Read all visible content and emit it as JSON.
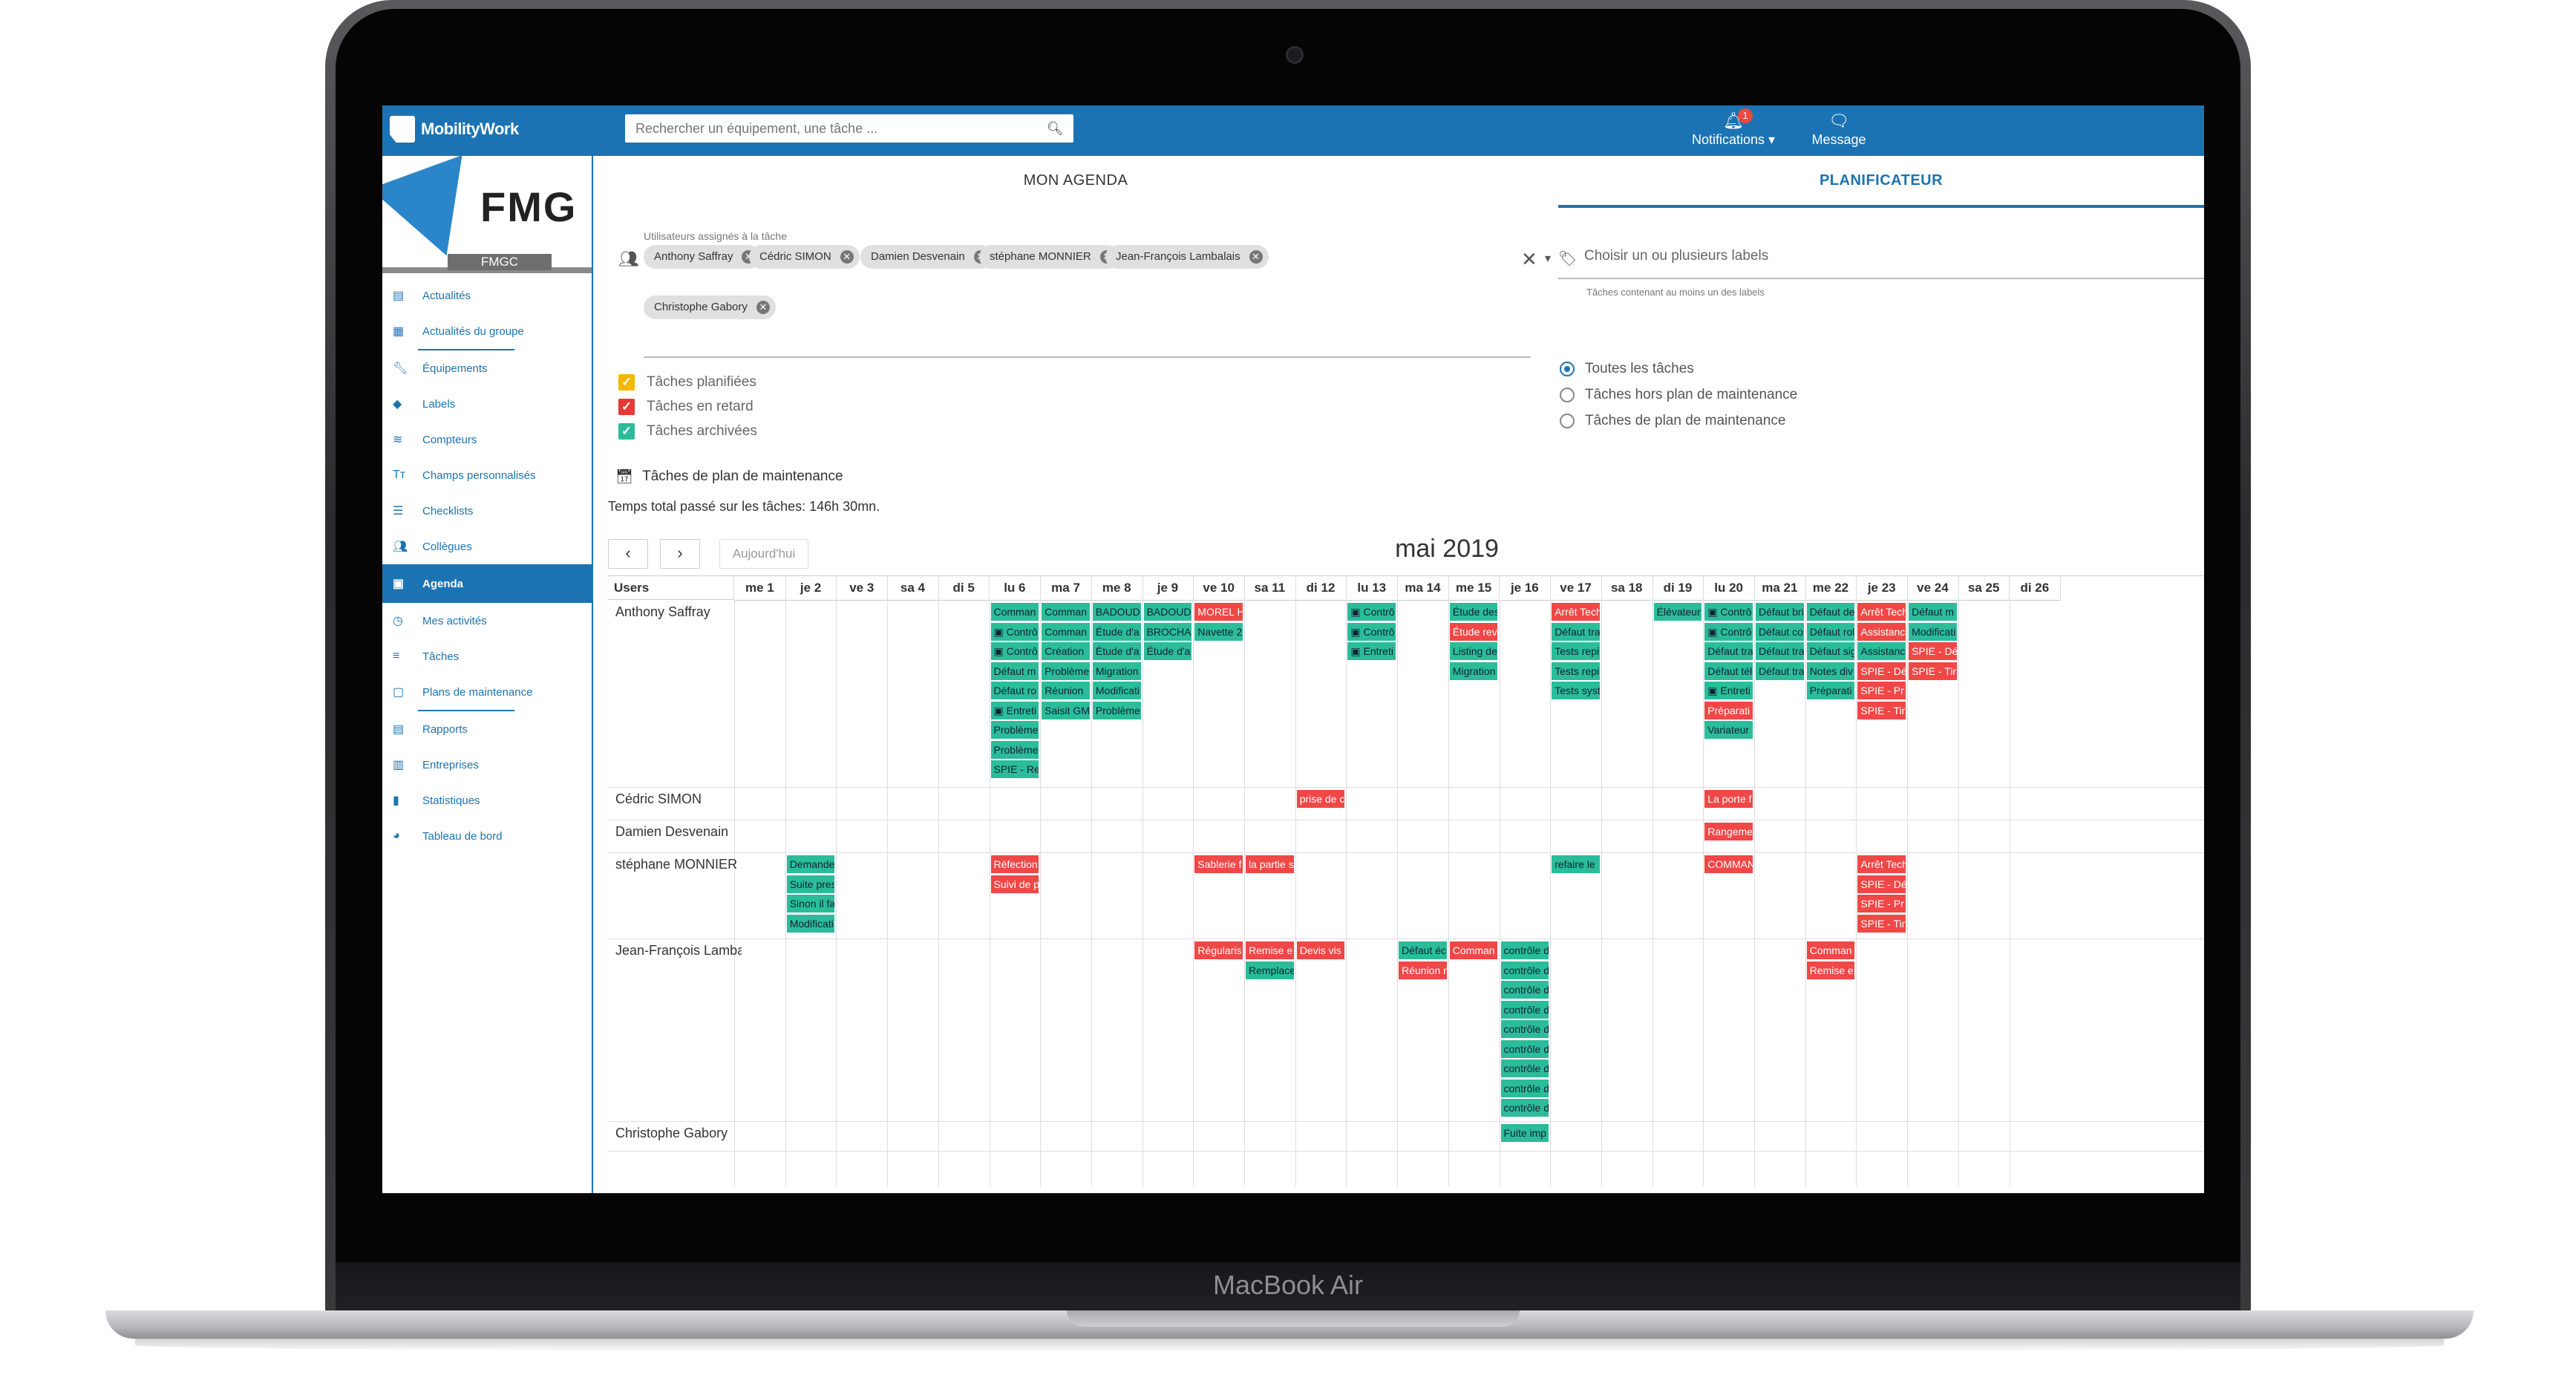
{
  "device": {
    "label": "MacBook Air"
  },
  "topbar": {
    "brand": "MobilityWork",
    "search_placeholder": "Rechercher un équipement, une tâche ...",
    "notifications_label": "Notifications",
    "notifications_count": "1",
    "message_label": "Message"
  },
  "org": {
    "name": "FMG",
    "sub": "FMGC"
  },
  "sidebar": {
    "items": [
      {
        "label": "Actualités",
        "icon": "news-icon"
      },
      {
        "label": "Actualités du groupe",
        "icon": "group-news-icon"
      },
      {
        "label": "Équipements",
        "icon": "wrench-icon"
      },
      {
        "label": "Labels",
        "icon": "tag-icon"
      },
      {
        "label": "Compteurs",
        "icon": "wifi-icon"
      },
      {
        "label": "Champs personnalisés",
        "icon": "text-icon"
      },
      {
        "label": "Checklists",
        "icon": "checklist-icon"
      },
      {
        "label": "Collègues",
        "icon": "users-icon"
      },
      {
        "label": "Agenda",
        "icon": "calendar-icon",
        "active": true
      },
      {
        "label": "Mes activités",
        "icon": "clock-icon"
      },
      {
        "label": "Tâches",
        "icon": "list-icon"
      },
      {
        "label": "Plans de maintenance",
        "icon": "plan-icon"
      },
      {
        "label": "Rapports",
        "icon": "report-icon"
      },
      {
        "label": "Entreprises",
        "icon": "company-icon"
      },
      {
        "label": "Statistiques",
        "icon": "chart-icon"
      },
      {
        "label": "Tableau de bord",
        "icon": "dashboard-icon"
      }
    ]
  },
  "tabs": [
    {
      "label": "MON AGENDA",
      "active": false
    },
    {
      "label": "PLANIFICATEUR",
      "active": true
    }
  ],
  "filters": {
    "assigned_label": "Utilisateurs assignés à la tâche",
    "assigned_users": [
      "Anthony Saffray",
      "Cédric SIMON",
      "Damien Desvenain",
      "stéphane MONNIER",
      "Jean-François Lambalais",
      "Christophe Gabory"
    ],
    "labels_placeholder": "Choisir un ou plusieurs labels",
    "labels_hint": "Tâches contenant au moins un des labels",
    "radios": [
      {
        "label": "Toutes les tâches",
        "checked": true
      },
      {
        "label": "Tâches hors plan de maintenance",
        "checked": false
      },
      {
        "label": "Tâches de plan de maintenance",
        "checked": false
      }
    ],
    "checkboxes": [
      {
        "label": "Tâches planifiées",
        "color": "#f5b700"
      },
      {
        "label": "Tâches en retard",
        "color": "#e53935"
      },
      {
        "label": "Tâches archivées",
        "color": "#2bbc9a"
      }
    ],
    "maintenance_label": "Tâches de plan de maintenance",
    "total_time": "Temps total passé sur les tâches: 146h 30mn."
  },
  "calendar": {
    "prev": "‹",
    "next": "›",
    "today": "Aujourd'hui",
    "title": "mai 2019",
    "users_header": "Users",
    "days": [
      "me 1",
      "je 2",
      "ve 3",
      "sa 4",
      "di 5",
      "lu 6",
      "ma 7",
      "me 8",
      "je 9",
      "ve 10",
      "sa 11",
      "di 12",
      "lu 13",
      "ma 14",
      "me 15",
      "je 16",
      "ve 17",
      "sa 18",
      "di 19",
      "lu 20",
      "ma 21",
      "me 22",
      "je 23",
      "ve 24",
      "sa 25",
      "di 26"
    ],
    "rows": [
      {
        "user": "Anthony Saffray",
        "events": [
          {
            "day": 5,
            "slot": 0,
            "text": "Comman",
            "c": "g"
          },
          {
            "day": 5,
            "slot": 1,
            "text": "▣ Contrô",
            "c": "g"
          },
          {
            "day": 5,
            "slot": 2,
            "text": "▣ Contrô",
            "c": "g"
          },
          {
            "day": 5,
            "slot": 3,
            "text": "Défaut m",
            "c": "g"
          },
          {
            "day": 5,
            "slot": 4,
            "text": "Défaut ro",
            "c": "g"
          },
          {
            "day": 5,
            "slot": 5,
            "text": "▣ Entreti",
            "c": "g"
          },
          {
            "day": 5,
            "slot": 6,
            "text": "Problème",
            "c": "g"
          },
          {
            "day": 5,
            "slot": 7,
            "text": "Problème",
            "c": "g"
          },
          {
            "day": 5,
            "slot": 8,
            "text": "SPIE - Re",
            "c": "g"
          },
          {
            "day": 6,
            "slot": 0,
            "text": "Comman",
            "c": "g"
          },
          {
            "day": 6,
            "slot": 1,
            "text": "Comman",
            "c": "g"
          },
          {
            "day": 6,
            "slot": 2,
            "text": "Création",
            "c": "g"
          },
          {
            "day": 6,
            "slot": 3,
            "text": "Problème",
            "c": "g"
          },
          {
            "day": 6,
            "slot": 4,
            "text": "Réunion",
            "c": "g"
          },
          {
            "day": 6,
            "slot": 5,
            "text": "Saisit GM",
            "c": "g"
          },
          {
            "day": 7,
            "slot": 0,
            "text": "BADOUD",
            "c": "g"
          },
          {
            "day": 7,
            "slot": 1,
            "text": "Étude d'a",
            "c": "g"
          },
          {
            "day": 7,
            "slot": 2,
            "text": "Étude d'a",
            "c": "g"
          },
          {
            "day": 7,
            "slot": 3,
            "text": "Migration",
            "c": "g"
          },
          {
            "day": 7,
            "slot": 4,
            "text": "Modificati",
            "c": "g"
          },
          {
            "day": 7,
            "slot": 5,
            "text": "Problème",
            "c": "g"
          },
          {
            "day": 8,
            "slot": 0,
            "text": "BADOUD",
            "c": "g"
          },
          {
            "day": 8,
            "slot": 1,
            "text": "BROCHA",
            "c": "g"
          },
          {
            "day": 8,
            "slot": 2,
            "text": "Étude d'a",
            "c": "g"
          },
          {
            "day": 9,
            "slot": 0,
            "text": "MOREL H",
            "c": "r"
          },
          {
            "day": 9,
            "slot": 1,
            "text": "Navette 2",
            "c": "g"
          },
          {
            "day": 12,
            "slot": 0,
            "text": "▣ Contrô",
            "c": "g"
          },
          {
            "day": 12,
            "slot": 1,
            "text": "▣ Contrô",
            "c": "g"
          },
          {
            "day": 12,
            "slot": 2,
            "text": "▣ Entreti",
            "c": "g"
          },
          {
            "day": 14,
            "slot": 0,
            "text": "Étude des",
            "c": "g"
          },
          {
            "day": 14,
            "slot": 1,
            "text": "Étude rev",
            "c": "r"
          },
          {
            "day": 14,
            "slot": 2,
            "text": "Listing de",
            "c": "g"
          },
          {
            "day": 14,
            "slot": 3,
            "text": "Migration",
            "c": "g"
          },
          {
            "day": 16,
            "slot": 0,
            "text": "Arrêt Tech",
            "c": "r"
          },
          {
            "day": 16,
            "slot": 1,
            "text": "Défaut tra",
            "c": "g"
          },
          {
            "day": 16,
            "slot": 2,
            "text": "Tests repi",
            "c": "g"
          },
          {
            "day": 16,
            "slot": 3,
            "text": "Tests repi",
            "c": "g"
          },
          {
            "day": 16,
            "slot": 4,
            "text": "Tests syst",
            "c": "g"
          },
          {
            "day": 18,
            "slot": 0,
            "text": "Élévateur",
            "c": "g"
          },
          {
            "day": 19,
            "slot": 0,
            "text": "▣ Contrô",
            "c": "g"
          },
          {
            "day": 19,
            "slot": 1,
            "text": "▣ Contrô",
            "c": "g"
          },
          {
            "day": 19,
            "slot": 2,
            "text": "Défaut tra",
            "c": "g"
          },
          {
            "day": 19,
            "slot": 3,
            "text": "Défaut tél",
            "c": "g"
          },
          {
            "day": 19,
            "slot": 4,
            "text": "▣ Entreti",
            "c": "g"
          },
          {
            "day": 19,
            "slot": 5,
            "text": "Préparati",
            "c": "r"
          },
          {
            "day": 19,
            "slot": 6,
            "text": "Variateur",
            "c": "g"
          },
          {
            "day": 20,
            "slot": 0,
            "text": "Défaut bri",
            "c": "g"
          },
          {
            "day": 20,
            "slot": 1,
            "text": "Défaut co",
            "c": "g"
          },
          {
            "day": 20,
            "slot": 2,
            "text": "Défaut tra",
            "c": "g"
          },
          {
            "day": 20,
            "slot": 3,
            "text": "Défaut tra",
            "c": "g"
          },
          {
            "day": 21,
            "slot": 0,
            "text": "Défaut de",
            "c": "g"
          },
          {
            "day": 21,
            "slot": 1,
            "text": "Défaut rol",
            "c": "g"
          },
          {
            "day": 21,
            "slot": 2,
            "text": "Défaut sig",
            "c": "g"
          },
          {
            "day": 21,
            "slot": 3,
            "text": "Notes div",
            "c": "g"
          },
          {
            "day": 21,
            "slot": 4,
            "text": "Préparati",
            "c": "g"
          },
          {
            "day": 22,
            "slot": 0,
            "text": "Arrêt Tech",
            "c": "r"
          },
          {
            "day": 22,
            "slot": 1,
            "text": "Assistanc",
            "c": "r"
          },
          {
            "day": 22,
            "slot": 2,
            "text": "Assistanc",
            "c": "g"
          },
          {
            "day": 22,
            "slot": 3,
            "text": "SPIE - Dé",
            "c": "r"
          },
          {
            "day": 22,
            "slot": 4,
            "text": "SPIE - Pr",
            "c": "r"
          },
          {
            "day": 22,
            "slot": 5,
            "text": "SPIE - Tir",
            "c": "r"
          },
          {
            "day": 23,
            "slot": 0,
            "text": "Défaut m",
            "c": "g"
          },
          {
            "day": 23,
            "slot": 1,
            "text": "Modificati",
            "c": "g"
          },
          {
            "day": 23,
            "slot": 2,
            "text": "SPIE - Dé",
            "c": "r"
          },
          {
            "day": 23,
            "slot": 3,
            "text": "SPIE - Tir",
            "c": "r"
          }
        ]
      },
      {
        "user": "Cédric SIMON",
        "events": [
          {
            "day": 11,
            "slot": 0,
            "text": "prise de c",
            "c": "r"
          },
          {
            "day": 19,
            "slot": 0,
            "text": "La porte f",
            "c": "r"
          }
        ]
      },
      {
        "user": "Damien Desvenain",
        "events": [
          {
            "day": 19,
            "slot": 0,
            "text": "Rangeme",
            "c": "r"
          }
        ]
      },
      {
        "user": "stéphane MONNIER",
        "events": [
          {
            "day": 1,
            "slot": 0,
            "text": "Demande",
            "c": "g"
          },
          {
            "day": 1,
            "slot": 1,
            "text": "Suite pres",
            "c": "g"
          },
          {
            "day": 1,
            "slot": 2,
            "text": "Sinon il fa",
            "c": "g"
          },
          {
            "day": 1,
            "slot": 3,
            "text": "Modificati",
            "c": "g"
          },
          {
            "day": 5,
            "slot": 0,
            "text": "Réfection",
            "c": "r"
          },
          {
            "day": 5,
            "slot": 1,
            "text": "Suivi de p",
            "c": "r"
          },
          {
            "day": 9,
            "slot": 0,
            "text": "Sablerie f",
            "c": "r"
          },
          {
            "day": 10,
            "slot": 0,
            "text": "la partie s",
            "c": "r"
          },
          {
            "day": 16,
            "slot": 0,
            "text": "refaire le",
            "c": "g"
          },
          {
            "day": 19,
            "slot": 0,
            "text": "COMMAN",
            "c": "r"
          },
          {
            "day": 22,
            "slot": 0,
            "text": "Arrêt Tech",
            "c": "r"
          },
          {
            "day": 22,
            "slot": 1,
            "text": "SPIE - Dé",
            "c": "r"
          },
          {
            "day": 22,
            "slot": 2,
            "text": "SPIE - Pr",
            "c": "r"
          },
          {
            "day": 22,
            "slot": 3,
            "text": "SPIE - Tir",
            "c": "r"
          }
        ]
      },
      {
        "user": "Jean-François Lambalais",
        "events": [
          {
            "day": 9,
            "slot": 0,
            "text": "Régularis",
            "c": "r"
          },
          {
            "day": 10,
            "slot": 0,
            "text": "Remise e",
            "c": "r"
          },
          {
            "day": 10,
            "slot": 1,
            "text": "Remplace",
            "c": "g"
          },
          {
            "day": 11,
            "slot": 0,
            "text": "Devis vis",
            "c": "r"
          },
          {
            "day": 13,
            "slot": 0,
            "text": "Défaut éc",
            "c": "g"
          },
          {
            "day": 13,
            "slot": 1,
            "text": "Réunion r",
            "c": "r"
          },
          {
            "day": 14,
            "slot": 0,
            "text": "Comman",
            "c": "r"
          },
          {
            "day": 15,
            "slot": 0,
            "text": "contrôle d",
            "c": "g"
          },
          {
            "day": 15,
            "slot": 1,
            "text": "contrôle d",
            "c": "g"
          },
          {
            "day": 15,
            "slot": 2,
            "text": "contrôle d",
            "c": "g"
          },
          {
            "day": 15,
            "slot": 3,
            "text": "contrôle d",
            "c": "g"
          },
          {
            "day": 15,
            "slot": 4,
            "text": "contrôle d",
            "c": "g"
          },
          {
            "day": 15,
            "slot": 5,
            "text": "contrôle d",
            "c": "g"
          },
          {
            "day": 15,
            "slot": 6,
            "text": "contrôle d",
            "c": "g"
          },
          {
            "day": 15,
            "slot": 7,
            "text": "contrôle d",
            "c": "g"
          },
          {
            "day": 15,
            "slot": 8,
            "text": "contrôle d",
            "c": "g"
          },
          {
            "day": 21,
            "slot": 0,
            "text": "Comman",
            "c": "r"
          },
          {
            "day": 21,
            "slot": 1,
            "text": "Remise e",
            "c": "r"
          }
        ]
      },
      {
        "user": "Christophe Gabory",
        "events": [
          {
            "day": 15,
            "slot": 0,
            "text": "Fuite imp",
            "c": "g"
          }
        ]
      }
    ]
  }
}
